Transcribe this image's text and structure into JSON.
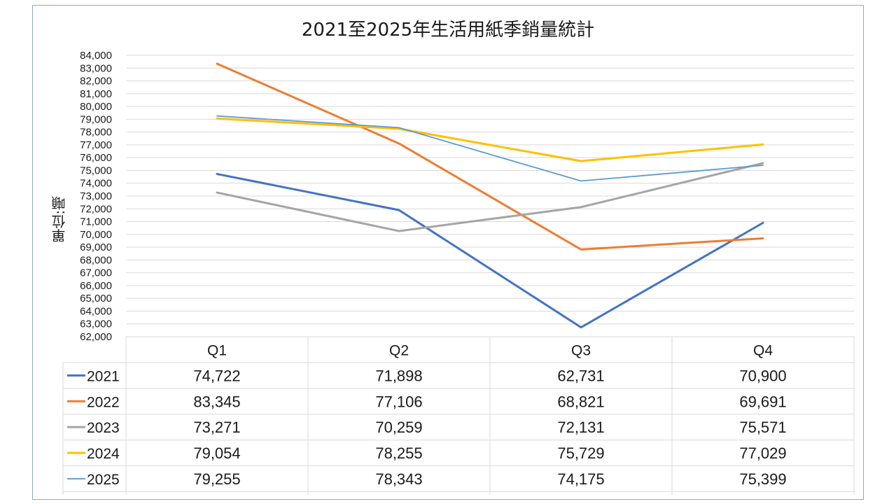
{
  "chart_data": {
    "type": "line",
    "title": "2021至2025年生活用紙季銷量統計",
    "ylabel": "單位:噸",
    "xlabel": "",
    "categories": [
      "Q1",
      "Q2",
      "Q3",
      "Q4"
    ],
    "ylim": [
      62000,
      84000
    ],
    "ystep": 1000,
    "grid": true,
    "legend": "data-table",
    "series": [
      {
        "name": "2021",
        "color": "#4472C4",
        "width": 3,
        "values": [
          74722,
          71898,
          62731,
          70900
        ],
        "labels": [
          "74,722",
          "71,898",
          "62,731",
          "70,900"
        ]
      },
      {
        "name": "2022",
        "color": "#ED7D31",
        "width": 3,
        "values": [
          83345,
          77106,
          68821,
          69691
        ],
        "labels": [
          "83,345",
          "77,106",
          "68,821",
          "69,691"
        ]
      },
      {
        "name": "2023",
        "color": "#A5A5A5",
        "width": 3,
        "values": [
          73271,
          70259,
          72131,
          75571
        ],
        "labels": [
          "73,271",
          "70,259",
          "72,131",
          "75,571"
        ]
      },
      {
        "name": "2024",
        "color": "#FFC000",
        "width": 3,
        "values": [
          79054,
          78255,
          75729,
          77029
        ],
        "labels": [
          "79,054",
          "78,255",
          "75,729",
          "77,029"
        ]
      },
      {
        "name": "2025",
        "color": "#5B9BD5",
        "width": 1.8,
        "values": [
          79255,
          78343,
          74175,
          75399
        ],
        "labels": [
          "79,255",
          "78,343",
          "74,175",
          "75,399"
        ]
      }
    ]
  }
}
